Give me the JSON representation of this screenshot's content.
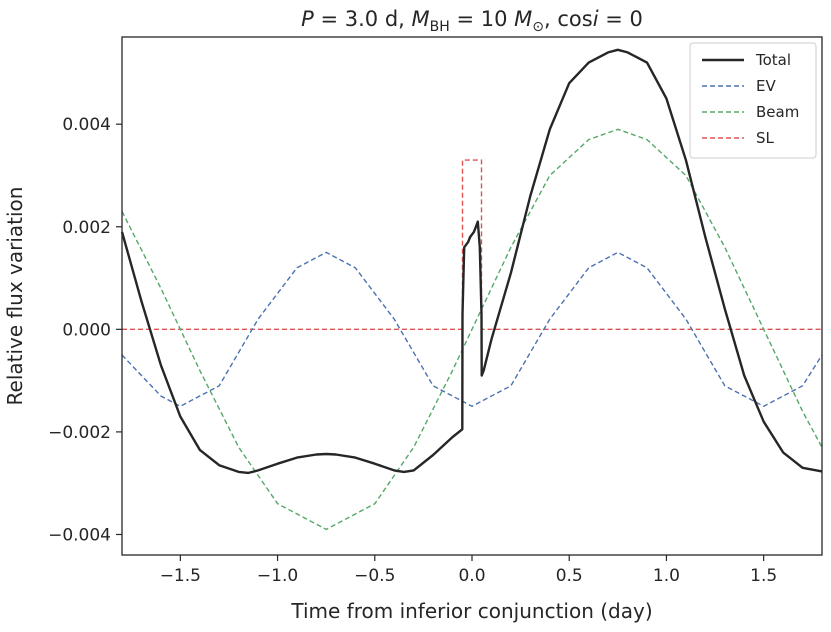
{
  "chart_data": {
    "type": "line",
    "title": {
      "p_sym": "P",
      "p_val": " = 3.0 d, ",
      "m_sym": "M",
      "m_sub": "BH",
      "m_val": " = 10 ",
      "sun_sym": "M",
      "sun_sub": "⊙",
      "cos_text": ", cos",
      "i_sym": "i",
      "end_val": " = 0"
    },
    "xlabel": "Time from inferior conjunction (day)",
    "ylabel": "Relative flux variation",
    "xlim": [
      -1.8,
      1.8
    ],
    "ylim": [
      -0.0044,
      0.0057
    ],
    "x_ticks": [
      {
        "value": -1.5,
        "label": "−1.5"
      },
      {
        "value": -1.0,
        "label": "−1.0"
      },
      {
        "value": -0.5,
        "label": "−0.5"
      },
      {
        "value": 0.0,
        "label": "0.0"
      },
      {
        "value": 0.5,
        "label": "0.5"
      },
      {
        "value": 1.0,
        "label": "1.0"
      },
      {
        "value": 1.5,
        "label": "1.5"
      }
    ],
    "y_ticks": [
      {
        "value": -0.004,
        "label": "−0.004"
      },
      {
        "value": -0.002,
        "label": "−0.002"
      },
      {
        "value": 0.0,
        "label": "0.000"
      },
      {
        "value": 0.002,
        "label": "0.002"
      },
      {
        "value": 0.004,
        "label": "0.004"
      }
    ],
    "legend_position": "top-right",
    "series": [
      {
        "name": "Total",
        "color": "#262626",
        "style": "solid",
        "x": [
          -1.8,
          -1.7,
          -1.6,
          -1.5,
          -1.4,
          -1.3,
          -1.2,
          -1.15,
          -1.1,
          -1.0,
          -0.9,
          -0.8,
          -0.75,
          -0.7,
          -0.6,
          -0.5,
          -0.4,
          -0.35,
          -0.3,
          -0.2,
          -0.1,
          -0.05,
          -0.049,
          -0.04,
          -0.03,
          -0.02,
          -0.01,
          0.0,
          0.01,
          0.02,
          0.03,
          0.04,
          0.049,
          0.05,
          0.06,
          0.1,
          0.2,
          0.3,
          0.4,
          0.5,
          0.6,
          0.7,
          0.75,
          0.8,
          0.9,
          1.0,
          1.1,
          1.2,
          1.3,
          1.4,
          1.5,
          1.6,
          1.7,
          1.8
        ],
        "y": [
          0.0019,
          0.00055,
          -0.0007,
          -0.0017,
          -0.00235,
          -0.00265,
          -0.00278,
          -0.0028,
          -0.00275,
          -0.00262,
          -0.0025,
          -0.00244,
          -0.00243,
          -0.00244,
          -0.0025,
          -0.00262,
          -0.00275,
          -0.00278,
          -0.00275,
          -0.00245,
          -0.0021,
          -0.00195,
          0.0003,
          0.0016,
          0.00165,
          0.0017,
          0.0018,
          0.00185,
          0.0019,
          0.002,
          0.0021,
          0.0016,
          0.0003,
          -0.0009,
          -0.0008,
          -0.0002,
          0.0011,
          0.0026,
          0.0039,
          0.0048,
          0.0052,
          0.0054,
          0.00545,
          0.0054,
          0.0052,
          0.0045,
          0.0033,
          0.0018,
          0.0004,
          -0.0009,
          -0.0018,
          -0.0024,
          -0.0027,
          -0.00277
        ]
      },
      {
        "name": "EV",
        "color": "#4c72b0",
        "style": "dashed",
        "x": [
          -1.8,
          -1.6,
          -1.5,
          -1.3,
          -1.1,
          -0.9,
          -0.75,
          -0.6,
          -0.4,
          -0.2,
          0.0,
          0.2,
          0.4,
          0.6,
          0.75,
          0.9,
          1.1,
          1.3,
          1.5,
          1.7,
          1.8
        ],
        "y": [
          -0.0005,
          -0.0013,
          -0.0015,
          -0.0011,
          0.0002,
          0.0012,
          0.0015,
          0.0012,
          0.0002,
          -0.0011,
          -0.0015,
          -0.0011,
          0.0002,
          0.0012,
          0.0015,
          0.0012,
          0.0002,
          -0.0011,
          -0.0015,
          -0.0011,
          -0.0005
        ]
      },
      {
        "name": "Beam",
        "color": "#55a868",
        "style": "dashed",
        "x": [
          -1.8,
          -1.6,
          -1.4,
          -1.2,
          -1.0,
          -0.75,
          -0.5,
          -0.3,
          -0.1,
          0.0,
          0.2,
          0.4,
          0.6,
          0.75,
          0.9,
          1.1,
          1.3,
          1.5,
          1.7,
          1.8
        ],
        "y": [
          0.0023,
          0.0008,
          -0.0008,
          -0.0023,
          -0.0034,
          -0.0039,
          -0.0034,
          -0.0023,
          -0.0008,
          0.0,
          0.0016,
          0.003,
          0.0037,
          0.0039,
          0.0037,
          0.003,
          0.0016,
          0.0,
          -0.0016,
          -0.0023
        ]
      },
      {
        "name": "SL",
        "color": "#dd5555",
        "style": "dashed",
        "x": [
          -1.8,
          -0.049,
          -0.049,
          0.049,
          0.049,
          1.8
        ],
        "y": [
          0.0,
          0.0,
          0.0033,
          0.0033,
          0.0,
          0.0
        ]
      }
    ]
  }
}
